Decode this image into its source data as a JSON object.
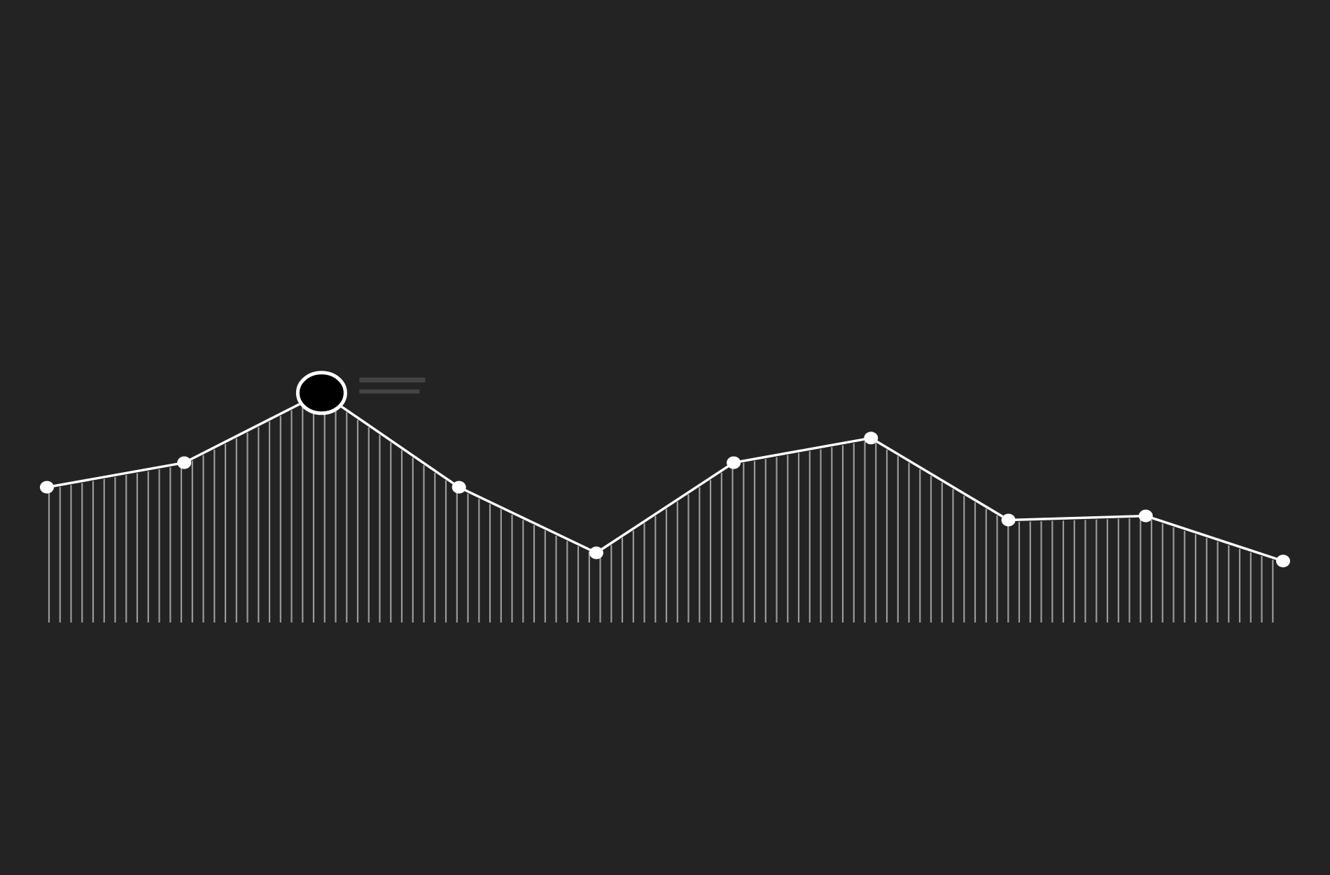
{
  "theme": {
    "background": "#232323",
    "line_color": "#ffffff",
    "fill_line_color": "#9a9a9a",
    "highlight_fill": "#000000",
    "highlight_stroke": "#ffffff",
    "tooltip_placeholder_color": "#444444"
  },
  "chart_data": {
    "type": "line",
    "title": "",
    "xlabel": "",
    "ylabel": "",
    "grid": false,
    "legend": "none",
    "fill_style": "vertical-hatch",
    "x": [
      0,
      1,
      2,
      3,
      4,
      5,
      6,
      7,
      8,
      9
    ],
    "ylim": [
      0,
      100
    ],
    "series": [
      {
        "values": [
          33,
          39,
          56,
          33,
          17,
          39,
          45,
          25,
          26,
          15
        ]
      }
    ],
    "highlight": {
      "index": 2,
      "tooltip_text_visible": false
    }
  }
}
